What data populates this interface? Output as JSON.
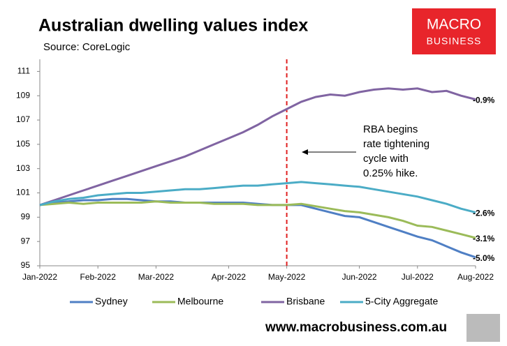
{
  "chart_data": {
    "type": "line",
    "title": "Australian dwelling values index",
    "subtitle": "Source: CoreLogic",
    "categories": [
      "Jan-2022",
      null,
      null,
      null,
      "Feb-2022",
      null,
      null,
      null,
      "Mar-2022",
      null,
      null,
      null,
      null,
      "Apr-2022",
      null,
      null,
      null,
      "May-2022",
      null,
      null,
      null,
      null,
      "Jun-2022",
      null,
      null,
      null,
      "Jul-2022",
      null,
      null,
      null,
      "Aug-2022"
    ],
    "series": [
      {
        "name": "Sydney",
        "color": "#4f7fc4",
        "change": -5.0,
        "change_label": "-5.0%",
        "values": [
          100,
          100.2,
          100.3,
          100.4,
          100.4,
          100.5,
          100.5,
          100.4,
          100.3,
          100.3,
          100.2,
          100.2,
          100.2,
          100.2,
          100.2,
          100.1,
          100.0,
          100.0,
          100.0,
          99.7,
          99.4,
          99.1,
          99.0,
          98.6,
          98.2,
          97.8,
          97.4,
          97.1,
          96.6,
          96.1,
          95.7
        ]
      },
      {
        "name": "Melbourne",
        "color": "#9bbb59",
        "change": -3.1,
        "change_label": "-3.1%",
        "values": [
          100,
          100.1,
          100.2,
          100.1,
          100.2,
          100.2,
          100.2,
          100.2,
          100.3,
          100.2,
          100.2,
          100.2,
          100.1,
          100.1,
          100.1,
          100.0,
          100.0,
          100.0,
          100.1,
          99.9,
          99.7,
          99.5,
          99.4,
          99.2,
          99.0,
          98.7,
          98.3,
          98.2,
          97.9,
          97.6,
          97.3
        ]
      },
      {
        "name": "Brisbane",
        "color": "#8064a2",
        "change": -0.9,
        "change_label": "-0.9%",
        "values": [
          100,
          100.4,
          100.8,
          101.2,
          101.6,
          102.0,
          102.4,
          102.8,
          103.2,
          103.6,
          104.0,
          104.5,
          105.0,
          105.5,
          106.0,
          106.6,
          107.3,
          107.9,
          108.5,
          108.9,
          109.1,
          109.0,
          109.3,
          109.5,
          109.6,
          109.5,
          109.6,
          109.3,
          109.4,
          109.0,
          108.7
        ]
      },
      {
        "name": "5-City Aggregate",
        "color": "#4bacc6",
        "change": -2.6,
        "change_label": "-2.6%",
        "values": [
          100,
          100.3,
          100.5,
          100.6,
          100.8,
          100.9,
          101.0,
          101.0,
          101.1,
          101.2,
          101.3,
          101.3,
          101.4,
          101.5,
          101.6,
          101.6,
          101.7,
          101.8,
          101.9,
          101.8,
          101.7,
          101.6,
          101.5,
          101.3,
          101.1,
          100.9,
          100.7,
          100.4,
          100.1,
          99.7,
          99.4
        ]
      }
    ],
    "ylim": [
      95,
      112
    ],
    "yticks": [
      95,
      97,
      99,
      101,
      103,
      105,
      107,
      109,
      111
    ],
    "grid": false,
    "event_category": "May-2022",
    "event_color": "#e02020",
    "annotation": [
      "RBA begins",
      "rate tightening",
      "cycle with",
      "0.25% hike."
    ],
    "logo": [
      "MACRO",
      "BUSINESS"
    ],
    "footer": "www.macrobusiness.com.au"
  }
}
